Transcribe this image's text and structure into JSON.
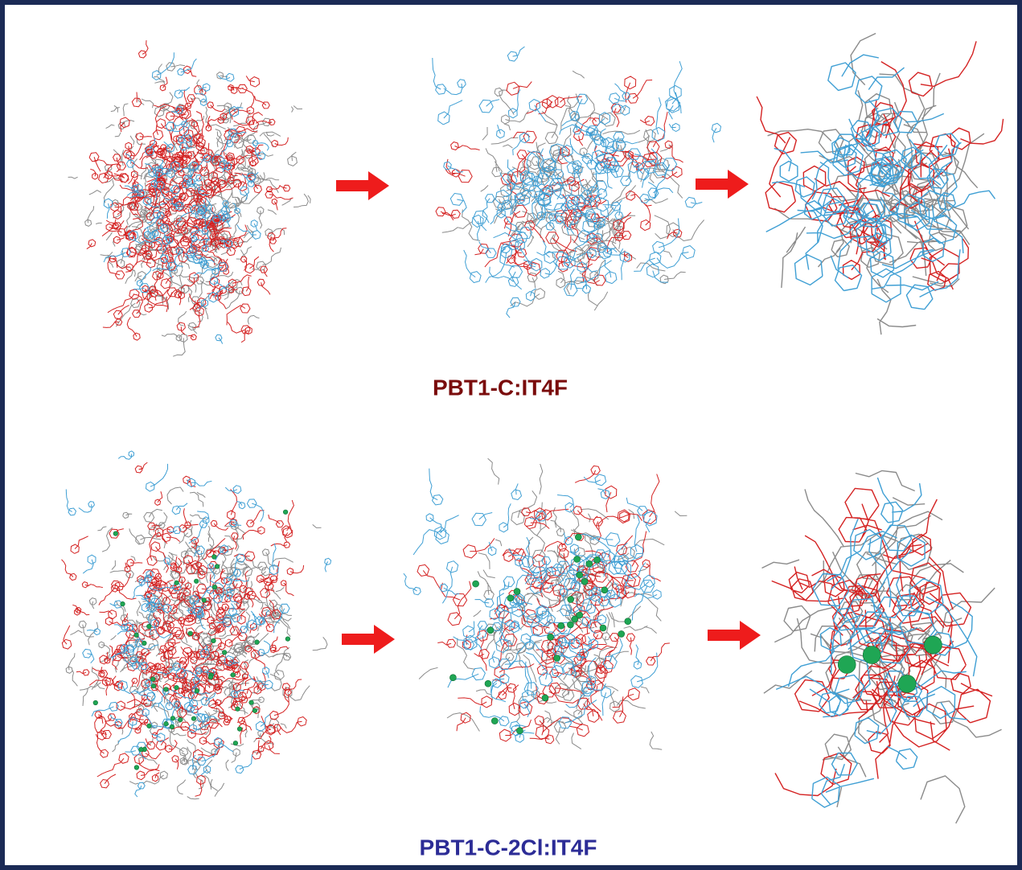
{
  "labels": {
    "top": "PBT1-C:IT4F",
    "bottom": "PBT1-C-2Cl:IT4F"
  }
}
